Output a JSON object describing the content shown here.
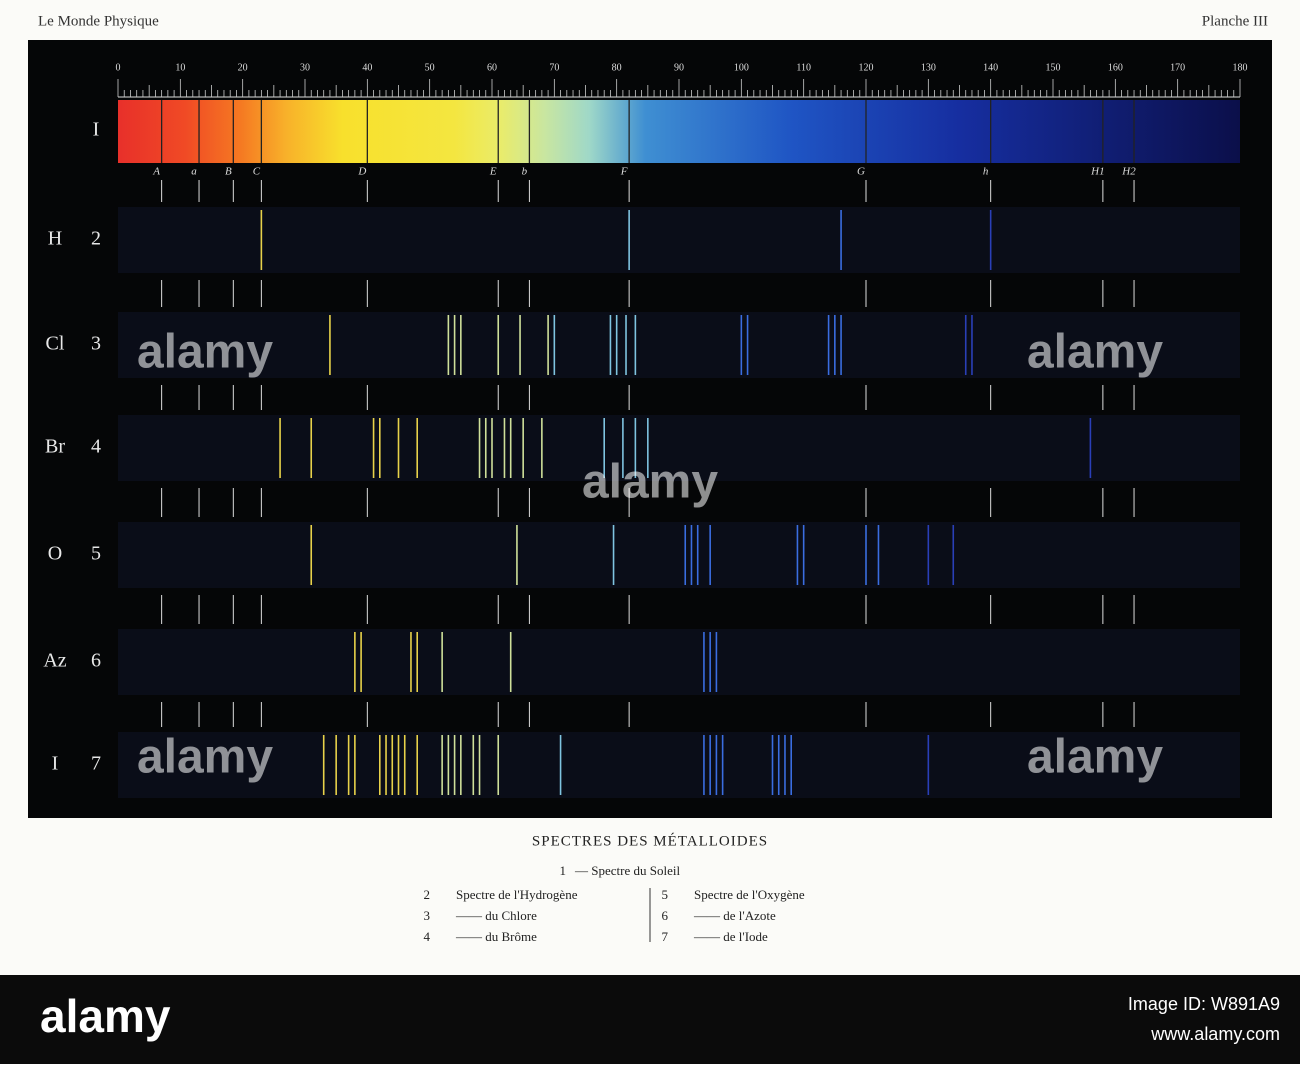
{
  "header": {
    "left": "Le Monde Physique",
    "right": "Planche III"
  },
  "scale": {
    "labels": [
      "0",
      "10",
      "20",
      "30",
      "40",
      "50",
      "60",
      "70",
      "80",
      "90",
      "100",
      "110",
      "120",
      "130",
      "140",
      "150",
      "160",
      "170",
      "180"
    ]
  },
  "fraunhofer": [
    "A",
    "a",
    "B",
    "C",
    "D",
    "E",
    "b",
    "F",
    "G",
    "h",
    "H1",
    "H2"
  ],
  "rows": [
    {
      "symbol": "",
      "number": "I"
    },
    {
      "symbol": "H",
      "number": "2"
    },
    {
      "symbol": "Cl",
      "number": "3"
    },
    {
      "symbol": "Br",
      "number": "4"
    },
    {
      "symbol": "O",
      "number": "5"
    },
    {
      "symbol": "Az",
      "number": "6"
    },
    {
      "symbol": "I",
      "number": "7"
    }
  ],
  "caption": {
    "title": "SPECTRES DES MÉTALLOIDES",
    "first": {
      "number": "1",
      "text": "— Spectre du Soleil"
    },
    "left": [
      {
        "number": "2",
        "text": "Spectre de l'Hydrogène"
      },
      {
        "number": "3",
        "text": "—— du Chlore"
      },
      {
        "number": "4",
        "text": "—— du Brôme"
      }
    ],
    "right": [
      {
        "number": "5",
        "text": "Spectre de l'Oxygène"
      },
      {
        "number": "6",
        "text": "—— de l'Azote"
      },
      {
        "number": "7",
        "text": "—— de l'Iode"
      }
    ]
  },
  "watermark": "alamy",
  "footer": {
    "logo": "alamy",
    "image_id": "Image ID: W891A9",
    "url": "www.alamy.com"
  }
}
